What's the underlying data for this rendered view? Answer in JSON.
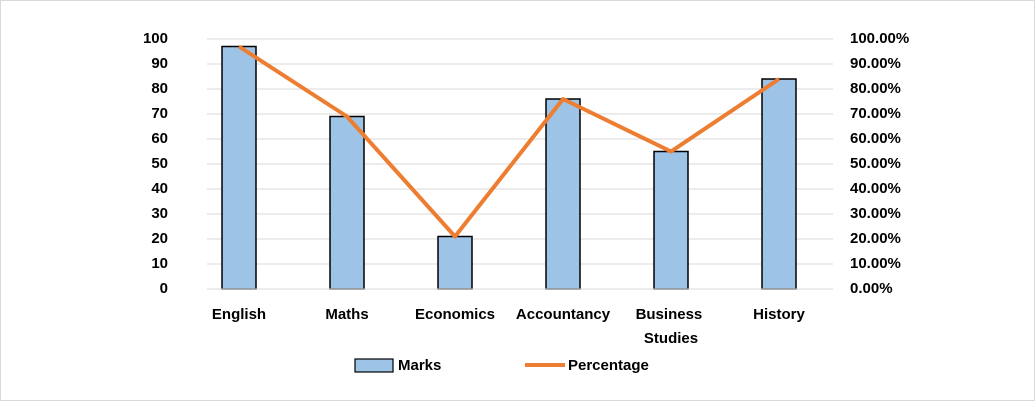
{
  "chart_data": {
    "type": "bar-line",
    "categories": [
      "English",
      "Maths",
      "Economics",
      "Accountancy",
      "Business Studies",
      "History"
    ],
    "series": [
      {
        "name": "Marks",
        "type": "bar",
        "color": "#9dc3e6",
        "values": [
          97,
          69,
          21,
          76,
          55,
          84
        ]
      },
      {
        "name": "Percentage",
        "type": "line",
        "axis": "y2",
        "color": "#ed7d31",
        "values": [
          97,
          69,
          21,
          76,
          55,
          84
        ]
      }
    ],
    "ylim": [
      0,
      100
    ],
    "yticks": [
      0,
      10,
      20,
      30,
      40,
      50,
      60,
      70,
      80,
      90,
      100
    ],
    "y2lim": [
      0,
      100
    ],
    "y2ticks": [
      {
        "value": 0,
        "label": "0.00%"
      },
      {
        "value": 10,
        "label": "10.00%"
      },
      {
        "value": 20,
        "label": "20.00%"
      },
      {
        "value": 30,
        "label": "30.00%"
      },
      {
        "value": 40,
        "label": "40.00%"
      },
      {
        "value": 50,
        "label": "50.00%"
      },
      {
        "value": 60,
        "label": "60.00%"
      },
      {
        "value": 70,
        "label": "70.00%"
      },
      {
        "value": 80,
        "label": "80.00%"
      },
      {
        "value": 90,
        "label": "90.00%"
      },
      {
        "value": 100,
        "label": "100.00%"
      }
    ],
    "grid": true,
    "legend": "bottom"
  }
}
